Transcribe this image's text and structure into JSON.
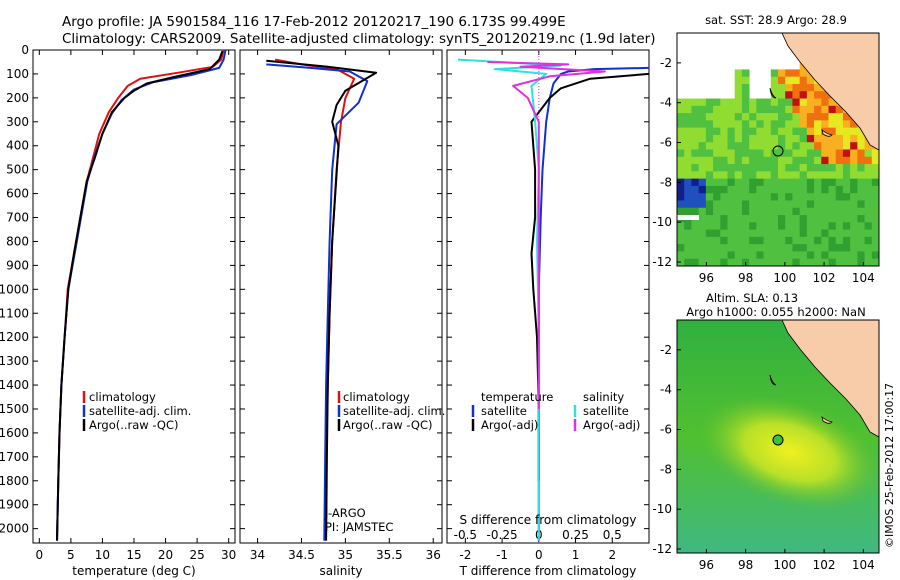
{
  "title_line1": "Argo profile: JA 5901584_116 17-Feb-2012 20120217_190 6.173S 99.499E",
  "title_line2": "Climatology: CARS2009. Satellite-adjusted climatology: synTS_20120219.nc (1.9d later)",
  "credit": "©IMOS 25-Feb-2012 17:00:17",
  "colors": {
    "climatology": "#e01010",
    "satellite": "#1030d0",
    "argo": "#000000",
    "temp_sat": "#1030d0",
    "sal_sat": "#30e0e0",
    "sal_argo": "#e030e0",
    "land": "#f8cca8"
  },
  "chart_data": [
    {
      "type": "line",
      "name": "temperature",
      "xlabel": "temperature (deg C)",
      "ylabel": "",
      "xlim": [
        -1,
        31
      ],
      "ylim": [
        2060,
        0
      ],
      "y_inverted": true,
      "xticks": [
        "0",
        "5",
        "10",
        "15",
        "20",
        "25",
        "30"
      ],
      "xtick_values": [
        0,
        5,
        10,
        15,
        20,
        25,
        30
      ],
      "yticks": [
        "0",
        "100",
        "200",
        "300",
        "400",
        "500",
        "600",
        "700",
        "800",
        "900",
        "1000",
        "1100",
        "1200",
        "1300",
        "1400",
        "1500",
        "1600",
        "1700",
        "1800",
        "1900",
        "2000"
      ],
      "ytick_values": [
        0,
        100,
        200,
        300,
        400,
        500,
        600,
        700,
        800,
        900,
        1000,
        1100,
        1200,
        1300,
        1400,
        1500,
        1600,
        1700,
        1800,
        1900,
        2000
      ],
      "legend": [
        "climatology",
        "satellite-adj. clim.",
        "Argo(..raw -QC)"
      ],
      "series": [
        {
          "name": "climatology",
          "color": "#e01010",
          "x": [
            29.2,
            28.8,
            27.5,
            22,
            16,
            14,
            12.5,
            11,
            9.5,
            8.5,
            7.5,
            6.5,
            5.5,
            4.5,
            4,
            3.5,
            3.2,
            3,
            2.8
          ],
          "y": [
            0,
            40,
            70,
            95,
            120,
            150,
            200,
            260,
            350,
            450,
            550,
            700,
            850,
            1000,
            1200,
            1400,
            1600,
            1800,
            2050
          ]
        },
        {
          "name": "satellite-adj. clim.",
          "color": "#1030d0",
          "x": [
            29.5,
            29.2,
            28.5,
            24,
            18,
            15,
            13,
            11.5,
            10,
            8.7,
            7.6,
            6.6,
            5.6,
            4.6,
            4,
            3.5,
            3.2,
            3,
            2.8
          ],
          "y": [
            0,
            40,
            75,
            105,
            135,
            165,
            210,
            265,
            350,
            450,
            550,
            700,
            850,
            1000,
            1200,
            1400,
            1600,
            1800,
            2050
          ]
        },
        {
          "name": "Argo(..raw -QC)",
          "color": "#000000",
          "x": [
            29,
            28.5,
            27,
            21,
            17,
            15,
            13.5,
            11.5,
            10,
            8.8,
            7.5,
            6.5,
            5.5,
            4.6,
            4,
            3.5,
            3.2,
            3,
            2.8
          ],
          "y": [
            5,
            40,
            80,
            115,
            140,
            170,
            200,
            260,
            350,
            450,
            550,
            700,
            850,
            1000,
            1200,
            1400,
            1600,
            1800,
            2050
          ]
        }
      ]
    },
    {
      "type": "line",
      "name": "salinity",
      "xlabel": "salinity",
      "ylabel": "",
      "xlim": [
        33.8,
        36.1
      ],
      "ylim": [
        2060,
        0
      ],
      "xticks": [
        "34",
        "34.5",
        "35",
        "35.5",
        "36"
      ],
      "xtick_values": [
        34,
        34.5,
        35,
        35.5,
        36
      ],
      "legend": [
        "climatology",
        "satellite-adj. clim.",
        "Argo(..raw -QC)"
      ],
      "annotations": [
        "J-ARGO",
        "PI: JAMSTEC"
      ],
      "series": [
        {
          "name": "climatology",
          "color": "#e01010",
          "x": [
            34.2,
            34.5,
            34.9,
            35.1,
            35.0,
            34.95,
            34.9,
            34.85,
            34.82,
            34.8,
            34.78,
            34.77
          ],
          "y": [
            40,
            60,
            80,
            120,
            200,
            300,
            500,
            800,
            1100,
            1400,
            1700,
            2050
          ]
        },
        {
          "name": "satellite-adj. clim.",
          "color": "#1030d0",
          "x": [
            34.1,
            34.6,
            35.05,
            35.25,
            35.15,
            34.9,
            34.85,
            34.82,
            34.8,
            34.78,
            34.77,
            34.76
          ],
          "y": [
            60,
            75,
            90,
            130,
            220,
            310,
            500,
            800,
            1100,
            1400,
            1700,
            2050
          ]
        },
        {
          "name": "Argo(..raw -QC)",
          "color": "#000000",
          "x": [
            34.1,
            34.8,
            35.35,
            35.0,
            34.9,
            34.85,
            34.92,
            34.85,
            34.82,
            34.8,
            34.79,
            34.78
          ],
          "y": [
            45,
            70,
            95,
            170,
            230,
            300,
            400,
            800,
            1100,
            1400,
            1700,
            2050
          ]
        }
      ]
    },
    {
      "type": "line",
      "name": "difference",
      "xlabel": "T difference from climatology",
      "x2label": "S difference from climatology",
      "xlim": [
        -2.5,
        3
      ],
      "ylim": [
        2060,
        0
      ],
      "xticks": [
        "-2",
        "-1",
        "0",
        "1",
        "2"
      ],
      "xtick_values": [
        -2,
        -1,
        0,
        1,
        2
      ],
      "x2ticks": [
        "-0.5",
        "-0.25",
        "0",
        "0.25",
        "0.5"
      ],
      "x2tick_values": [
        -0.5,
        -0.25,
        0,
        0.25,
        0.5
      ],
      "legend_temperature": [
        "temperature",
        "satellite",
        "Argo(-adj)"
      ],
      "legend_salinity": [
        "salinity",
        "satellite",
        "Argo(-adj)"
      ],
      "series": [
        {
          "name": "temperature satellite",
          "color": "#1030d0",
          "x": [
            3,
            1.5,
            0.8,
            0.6,
            0.4,
            0.3,
            0.2,
            0.1,
            0.05,
            0,
            0,
            0,
            0
          ],
          "y": [
            75,
            80,
            90,
            100,
            140,
            200,
            300,
            500,
            700,
            1000,
            1400,
            1800,
            2050
          ]
        },
        {
          "name": "temperature Argo",
          "color": "#000000",
          "x": [
            3,
            1.4,
            0.6,
            0.3,
            -0.2,
            -0.1,
            -0.1,
            -0.2,
            -0.15,
            -0.05,
            0,
            0
          ],
          "y": [
            100,
            120,
            160,
            200,
            300,
            500,
            700,
            850,
            1000,
            1200,
            1500,
            1800
          ]
        },
        {
          "name": "salinity satellite",
          "color": "#30e0e0",
          "x": [
            -2.2,
            -0.5,
            0.6,
            -1.2,
            0.2,
            -0.2,
            -0.1,
            0,
            -0.05,
            0,
            0
          ],
          "y": [
            40,
            55,
            65,
            80,
            100,
            150,
            300,
            500,
            800,
            1200,
            2050
          ]
        },
        {
          "name": "salinity Argo",
          "color": "#e030e0",
          "x": [
            -1.4,
            0.8,
            -0.5,
            1.8,
            0.3,
            -0.7,
            -0.3,
            0,
            0,
            0
          ],
          "y": [
            50,
            60,
            70,
            90,
            110,
            150,
            200,
            300,
            500,
            1500
          ]
        }
      ]
    },
    {
      "type": "heatmap",
      "name": "satellite SST map",
      "title": "sat. SST: 28.9 Argo: 28.9",
      "xlim": [
        94.5,
        104.8
      ],
      "ylim": [
        -12.2,
        -0.5
      ],
      "xticks": [
        "96",
        "98",
        "100",
        "102",
        "104"
      ],
      "xtick_values": [
        96,
        98,
        100,
        102,
        104
      ],
      "yticks": [
        "-2",
        "-4",
        "-6",
        "-8",
        "-10",
        "-12"
      ],
      "ytick_values": [
        -2,
        -4,
        -6,
        -8,
        -10,
        -12
      ],
      "argo_position": [
        99.499,
        -6.173
      ]
    },
    {
      "type": "heatmap",
      "name": "altimetry SLA map",
      "title_line1": "Altim. SLA: 0.13",
      "title_line2": "Argo h1000: 0.055 h2000: NaN",
      "xlim": [
        94.5,
        104.8
      ],
      "ylim": [
        -12.2,
        -0.5
      ],
      "xticks": [
        "96",
        "98",
        "100",
        "102",
        "104"
      ],
      "xtick_values": [
        96,
        98,
        100,
        102,
        104
      ],
      "yticks": [
        "-2",
        "-4",
        "-6",
        "-8",
        "-10",
        "-12"
      ],
      "ytick_values": [
        -2,
        -4,
        -6,
        -8,
        -10,
        -12
      ],
      "argo_position": [
        99.499,
        -6.173
      ]
    }
  ]
}
